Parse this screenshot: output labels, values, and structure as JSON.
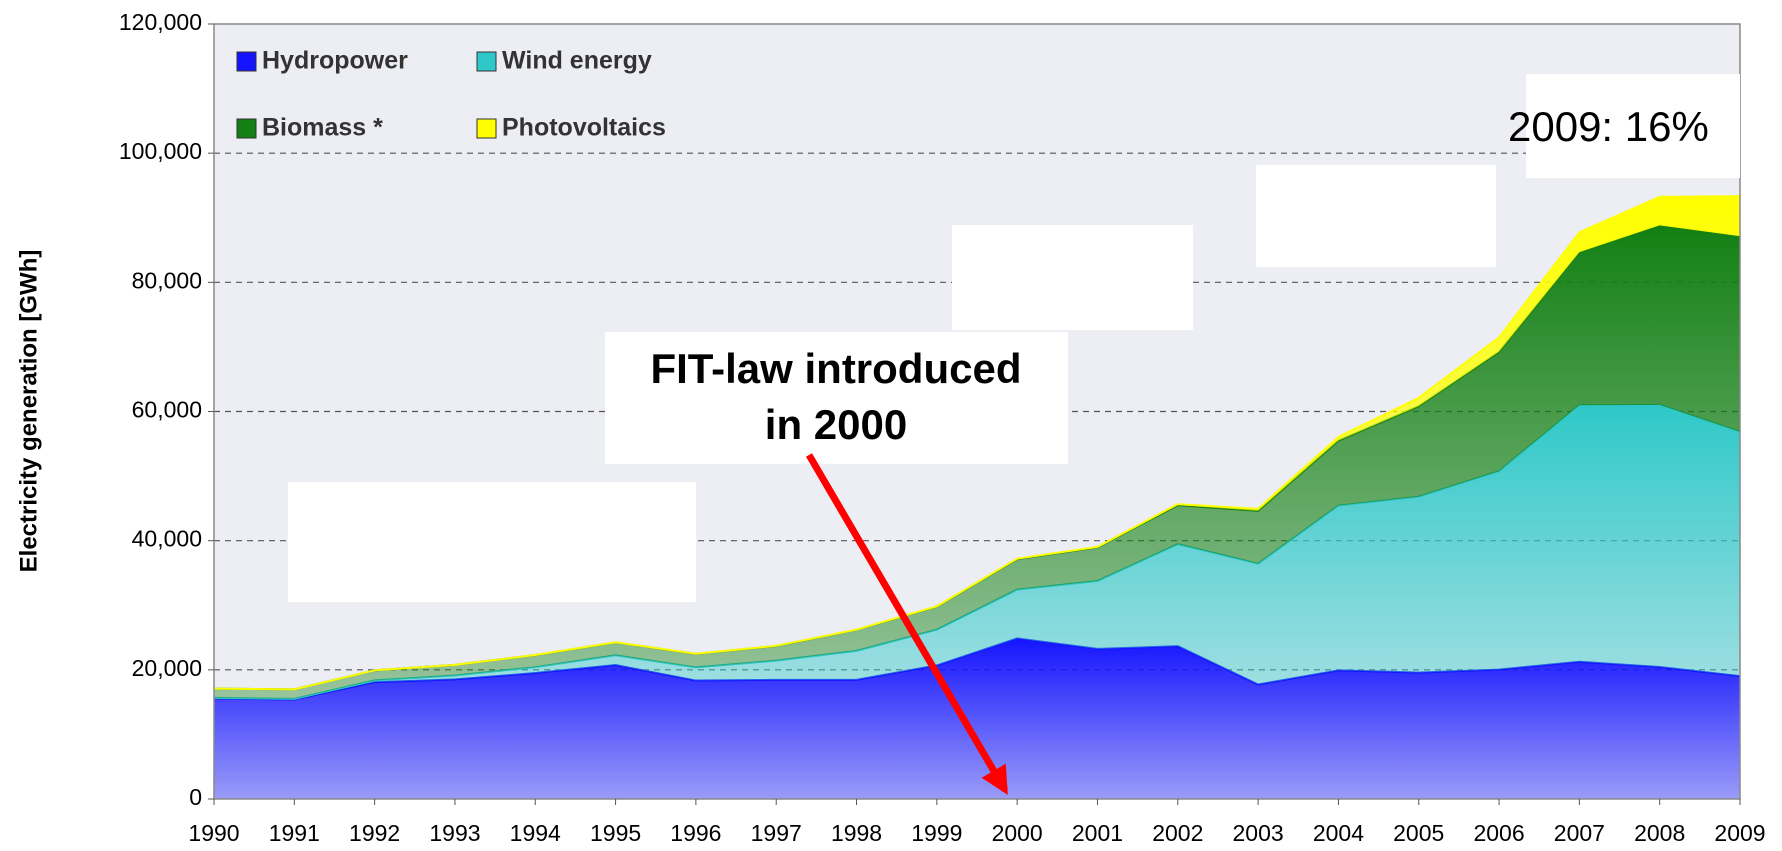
{
  "chart_data": {
    "type": "stacked_area",
    "y_label": "Electricity generation [GWh]",
    "categories": [
      "1990",
      "1991",
      "1992",
      "1993",
      "1994",
      "1995",
      "1996",
      "1997",
      "1998",
      "1999",
      "2000",
      "2001",
      "2002",
      "2003",
      "2004",
      "2005",
      "2006",
      "2007",
      "2008",
      "2009"
    ],
    "series": [
      {
        "name": "Hydropower",
        "color": "#1414ff",
        "values": [
          15580,
          15402,
          18091,
          18526,
          19501,
          20747,
          18340,
          18453,
          18452,
          20686,
          24867,
          23241,
          23662,
          17722,
          19910,
          19576,
          20042,
          21249,
          20446,
          19036
        ]
      },
      {
        "name": "Wind energy",
        "color": "#2ec8c8",
        "values": [
          71,
          100,
          275,
          600,
          909,
          1500,
          2032,
          2966,
          4489,
          5528,
          7550,
          10509,
          15786,
          18713,
          25509,
          27229,
          30710,
          39713,
          40574,
          37809
        ]
      },
      {
        "name": "Biomass *",
        "color": "#138013",
        "values": [
          1435,
          1471,
          1558,
          1635,
          1875,
          2010,
          2098,
          2273,
          3256,
          3585,
          4731,
          5214,
          6048,
          8176,
          10077,
          14025,
          18491,
          23705,
          27800,
          30300
        ]
      },
      {
        "name": "Photovoltaics",
        "color": "#ffff00",
        "values": [
          1,
          2,
          3,
          6,
          8,
          11,
          16,
          26,
          32,
          42,
          64,
          76,
          162,
          313,
          557,
          1282,
          2220,
          3075,
          4420,
          6200
        ]
      }
    ],
    "ylim": [
      0,
      120000
    ],
    "yticks": [
      0,
      {
        "value": 20000,
        "label": "20,000"
      },
      {
        "value": 40000,
        "label": "40,000"
      },
      {
        "value": 60000,
        "label": "60,000"
      },
      {
        "value": 80000,
        "label": "80,000"
      },
      {
        "value": 100000,
        "label": "100,000"
      },
      {
        "value": 120000,
        "label": "120,000"
      }
    ],
    "grid": true,
    "annotations": {
      "fit_law": [
        "FIT-law introduced",
        "in 2000"
      ],
      "share": "2009: 16%"
    }
  }
}
